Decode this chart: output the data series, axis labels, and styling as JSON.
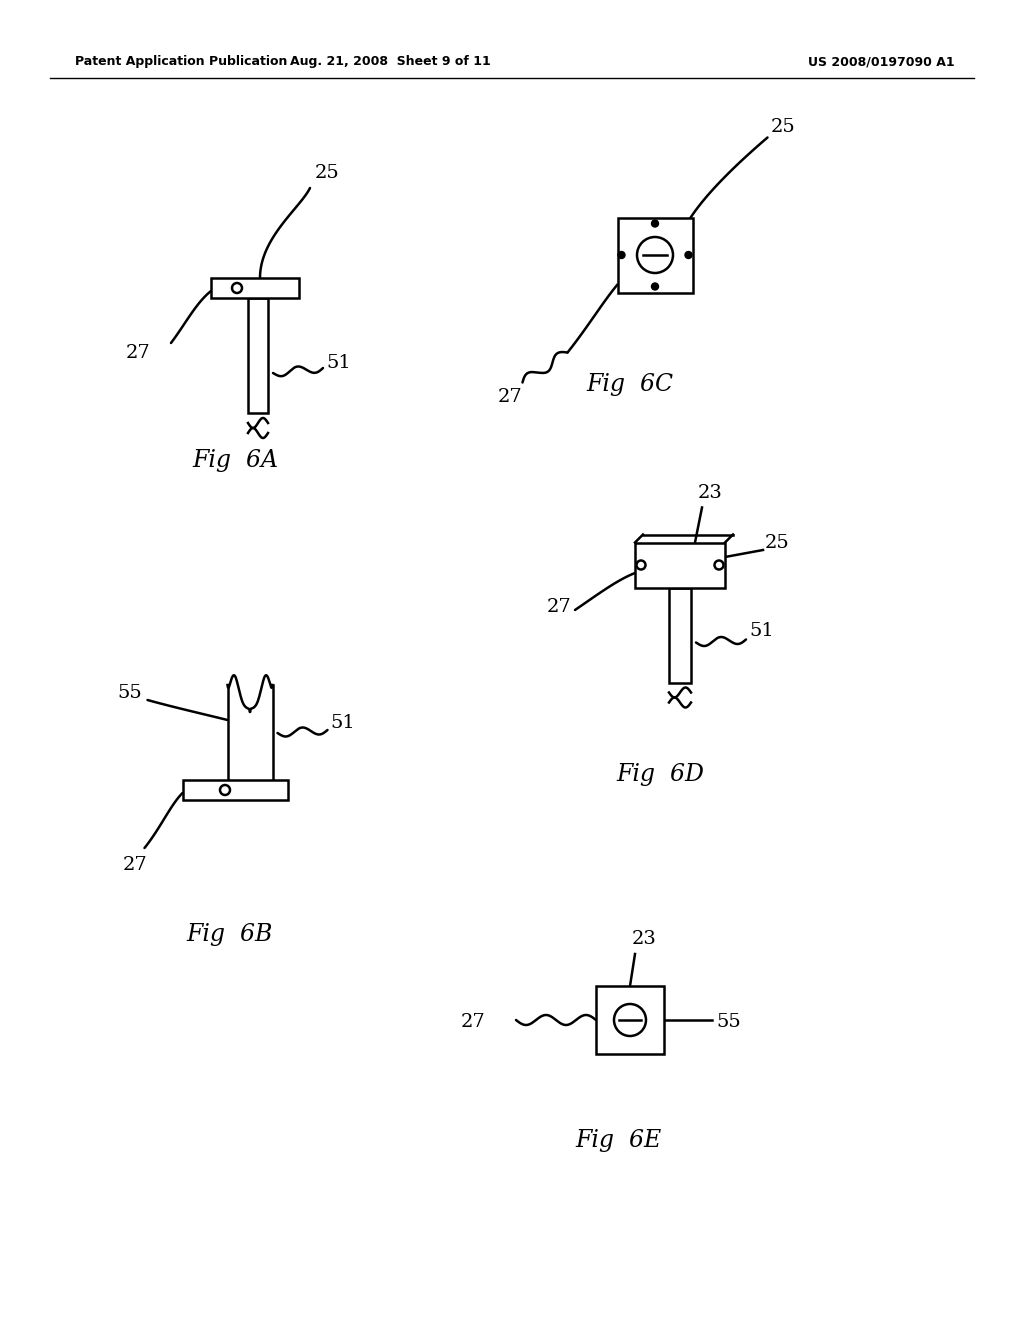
{
  "bg_color": "#ffffff",
  "header_left": "Patent Application Publication",
  "header_center": "Aug. 21, 2008  Sheet 9 of 11",
  "header_right": "US 2008/0197090 A1",
  "line_color": "#000000",
  "line_width": 1.8
}
